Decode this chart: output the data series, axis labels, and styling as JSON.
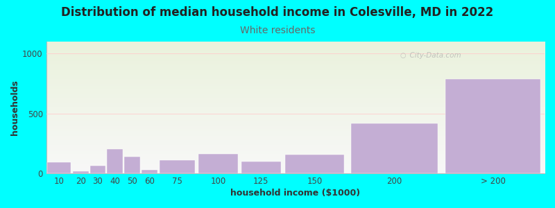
{
  "title": "Distribution of median household income in Colesville, MD in 2022",
  "subtitle": "White residents",
  "xlabel": "household income ($1000)",
  "ylabel": "households",
  "background_color": "#00FFFF",
  "plot_bg_top": "#eaf2dc",
  "plot_bg_bottom": "#f8f8f8",
  "bar_color": "#c4aed4",
  "bar_edge_color": "#c4aed4",
  "categories": [
    "10",
    "20",
    "30",
    "40",
    "50",
    "60",
    "75",
    "100",
    "125",
    "150",
    "200",
    "> 200"
  ],
  "bin_edges": [
    0,
    15,
    25,
    35,
    45,
    55,
    65,
    87.5,
    112.5,
    137.5,
    175,
    230,
    290
  ],
  "values": [
    90,
    18,
    65,
    205,
    140,
    28,
    108,
    162,
    98,
    155,
    415,
    790
  ],
  "ylim": [
    0,
    1100
  ],
  "yticks": [
    0,
    500,
    1000
  ],
  "watermark": "  City-Data.com",
  "title_fontsize": 12,
  "subtitle_fontsize": 10,
  "axis_label_fontsize": 9,
  "tick_fontsize": 8.5,
  "subtitle_color": "#666666",
  "title_color": "#222222",
  "tick_color": "#444444"
}
